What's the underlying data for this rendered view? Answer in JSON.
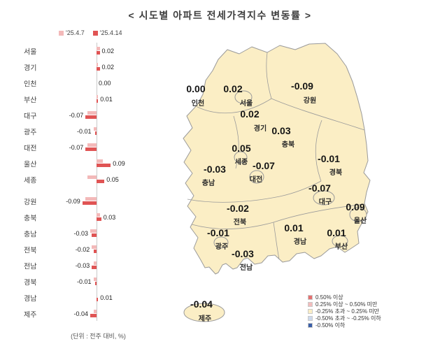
{
  "title": "<  시도별  아파트  전세가격지수  변동률  >",
  "unit_note": "(단위 : 전주 대비, %)",
  "bar_legend": [
    {
      "label": "'25.4.7",
      "color": "#f3b9b9"
    },
    {
      "label": "'25.4.14",
      "color": "#e05454"
    }
  ],
  "chart_data": {
    "type": "bar",
    "orientation": "horizontal",
    "title": "시도별 아파트 전세가격지수 변동률",
    "unit": "전주 대비, %",
    "categories": [
      "서울",
      "경기",
      "인천",
      "부산",
      "대구",
      "광주",
      "대전",
      "울산",
      "세종",
      "강원",
      "충북",
      "충남",
      "전북",
      "전남",
      "경북",
      "경남",
      "제주"
    ],
    "series": [
      {
        "name": "'25.4.7",
        "color": "#f3b9b9",
        "values": [
          0.02,
          0.01,
          0.0,
          0.01,
          -0.06,
          -0.02,
          -0.06,
          0.04,
          -0.06,
          -0.07,
          0.02,
          -0.04,
          -0.03,
          -0.02,
          -0.02,
          0.0,
          -0.02
        ]
      },
      {
        "name": "'25.4.14",
        "color": "#e05454",
        "values": [
          0.02,
          0.02,
          0.0,
          0.01,
          -0.07,
          -0.01,
          -0.07,
          0.09,
          0.05,
          -0.09,
          0.03,
          -0.03,
          -0.02,
          -0.03,
          -0.01,
          0.01,
          -0.04
        ]
      }
    ],
    "value_labels": [
      "0.02",
      "0.02",
      "0.00",
      "0.01",
      "-0.07",
      "-0.01",
      "-0.07",
      "0.09",
      "0.05",
      "-0.09",
      "0.03",
      "-0.03",
      "-0.02",
      "-0.03",
      "-0.01",
      "0.01",
      "-0.04"
    ],
    "xlim": [
      -0.12,
      0.12
    ],
    "group_gap_after": "세종"
  },
  "map": {
    "fill_color": "#fbeec5",
    "outline_color": "#9a9a9a",
    "regions": [
      {
        "name": "인천",
        "value": "0.00",
        "vx": 280,
        "vy": 119,
        "nx": 283,
        "ny": 139
      },
      {
        "name": "서울",
        "value": "0.02",
        "vx": 333,
        "vy": 119,
        "nx": 352,
        "ny": 139
      },
      {
        "name": "강원",
        "value": "-0.09",
        "vx": 432,
        "vy": 115,
        "nx": 443,
        "ny": 135
      },
      {
        "name": "경기",
        "value": "0.02",
        "vx": 357,
        "vy": 155,
        "nx": 372,
        "ny": 175
      },
      {
        "name": "충북",
        "value": "0.03",
        "vx": 402,
        "vy": 179,
        "nx": 412,
        "ny": 198
      },
      {
        "name": "세종",
        "value": "0.05",
        "vx": 345,
        "vy": 204,
        "nx": 345,
        "ny": 223
      },
      {
        "name": "대전",
        "value": "-0.07",
        "vx": 377,
        "vy": 229,
        "nx": 366,
        "ny": 248
      },
      {
        "name": "충남",
        "value": "-0.03",
        "vx": 307,
        "vy": 234,
        "nx": 298,
        "ny": 253
      },
      {
        "name": "경북",
        "value": "-0.01",
        "vx": 470,
        "vy": 219,
        "nx": 480,
        "ny": 238
      },
      {
        "name": "대구",
        "value": "-0.07",
        "vx": 457,
        "vy": 261,
        "nx": 465,
        "ny": 280
      },
      {
        "name": "울산",
        "value": "0.09",
        "vx": 508,
        "vy": 288,
        "nx": 515,
        "ny": 307
      },
      {
        "name": "전북",
        "value": "-0.02",
        "vx": 340,
        "vy": 290,
        "nx": 343,
        "ny": 309
      },
      {
        "name": "경남",
        "value": "0.01",
        "vx": 420,
        "vy": 318,
        "nx": 429,
        "ny": 337
      },
      {
        "name": "광주",
        "value": "-0.01",
        "vx": 312,
        "vy": 325,
        "nx": 317,
        "ny": 344
      },
      {
        "name": "부산",
        "value": "0.01",
        "vx": 481,
        "vy": 325,
        "nx": 488,
        "ny": 344
      },
      {
        "name": "전남",
        "value": "-0.03",
        "vx": 347,
        "vy": 355,
        "nx": 352,
        "ny": 374
      },
      {
        "name": "제주",
        "value": "-0.04",
        "vx": 288,
        "vy": 427,
        "nx": 293,
        "ny": 447
      }
    ]
  },
  "legend": {
    "items": [
      {
        "label": "0.50% 이상",
        "color": "#e57070"
      },
      {
        "label": "0.25% 이상 ~ 0.50% 미만",
        "color": "#f3bcbc"
      },
      {
        "label": "-0.25% 초과 ~ 0.25% 미만",
        "color": "#fbeec5"
      },
      {
        "label": "-0.50% 초과 ~ -0.25% 이하",
        "color": "#ccd9ec"
      },
      {
        "label": "-0.50% 이하",
        "color": "#3a5fa8"
      }
    ]
  }
}
